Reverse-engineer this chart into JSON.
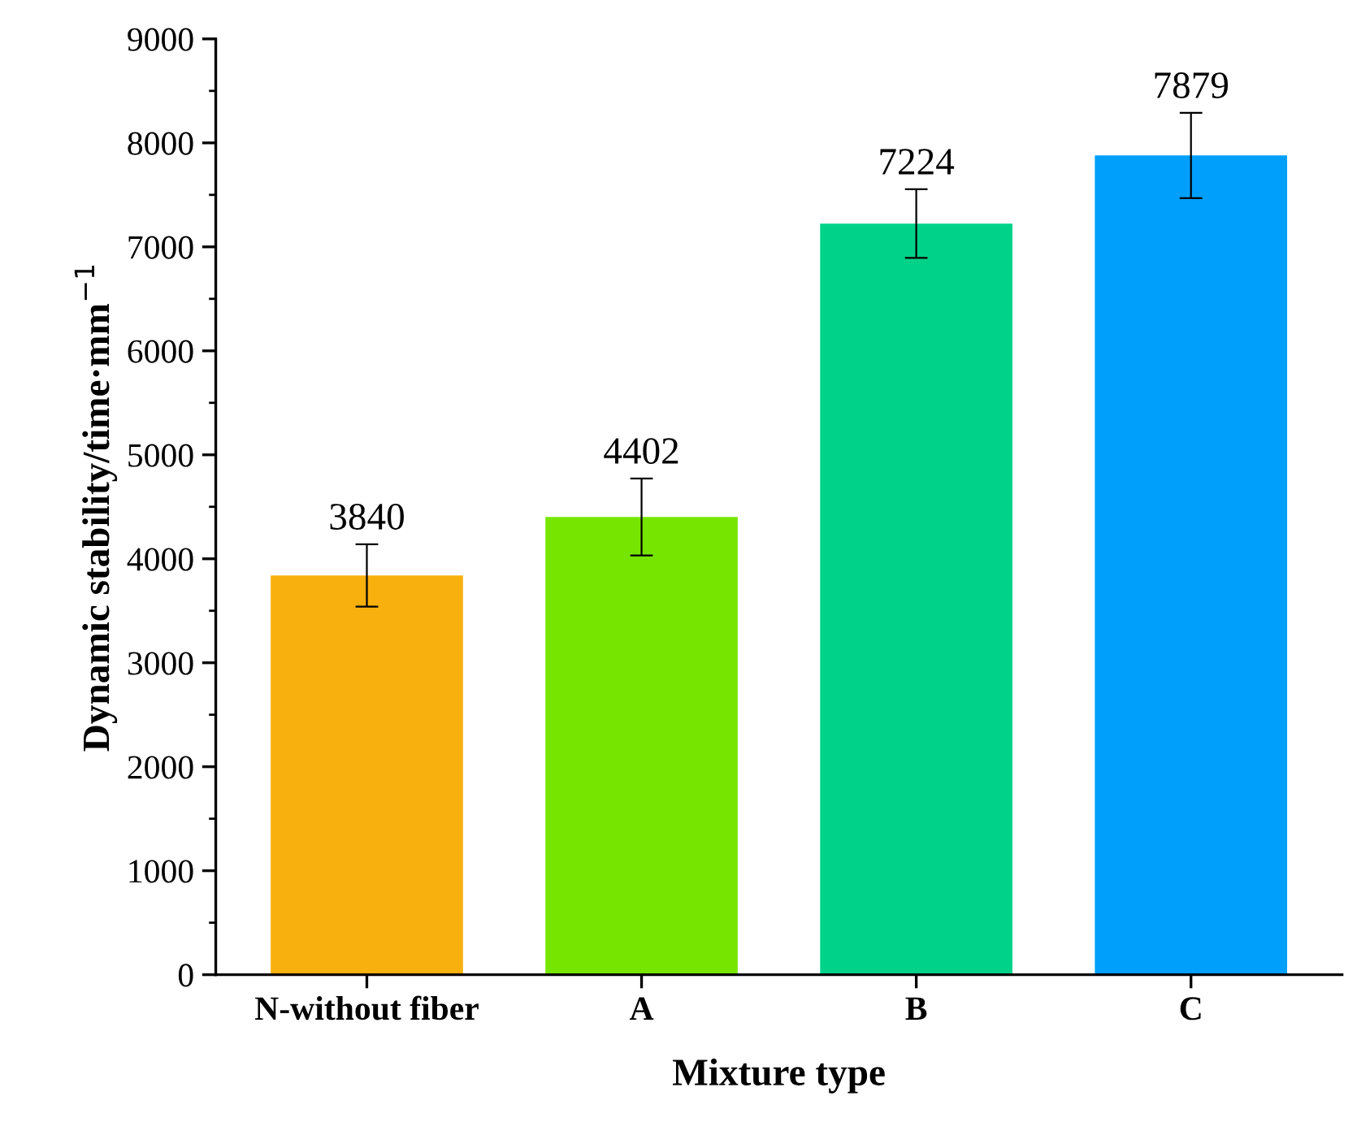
{
  "chart_data": {
    "type": "bar",
    "xlabel": "Mixture type",
    "ylabel": "Dynamic stability/time·mm$^{−1}$",
    "categories": [
      "N-without fiber",
      "A",
      "B",
      "C"
    ],
    "values": [
      3840,
      4402,
      7224,
      7879
    ],
    "errors": [
      300,
      370,
      330,
      410
    ],
    "colors": [
      "#f8b00e",
      "#76e600",
      "#00d28a",
      "#009ffc"
    ],
    "ylim": [
      0,
      9000
    ],
    "yticks": [
      0,
      1000,
      2000,
      3000,
      4000,
      5000,
      6000,
      7000,
      8000,
      9000
    ],
    "data_labels": true,
    "grid": false
  }
}
